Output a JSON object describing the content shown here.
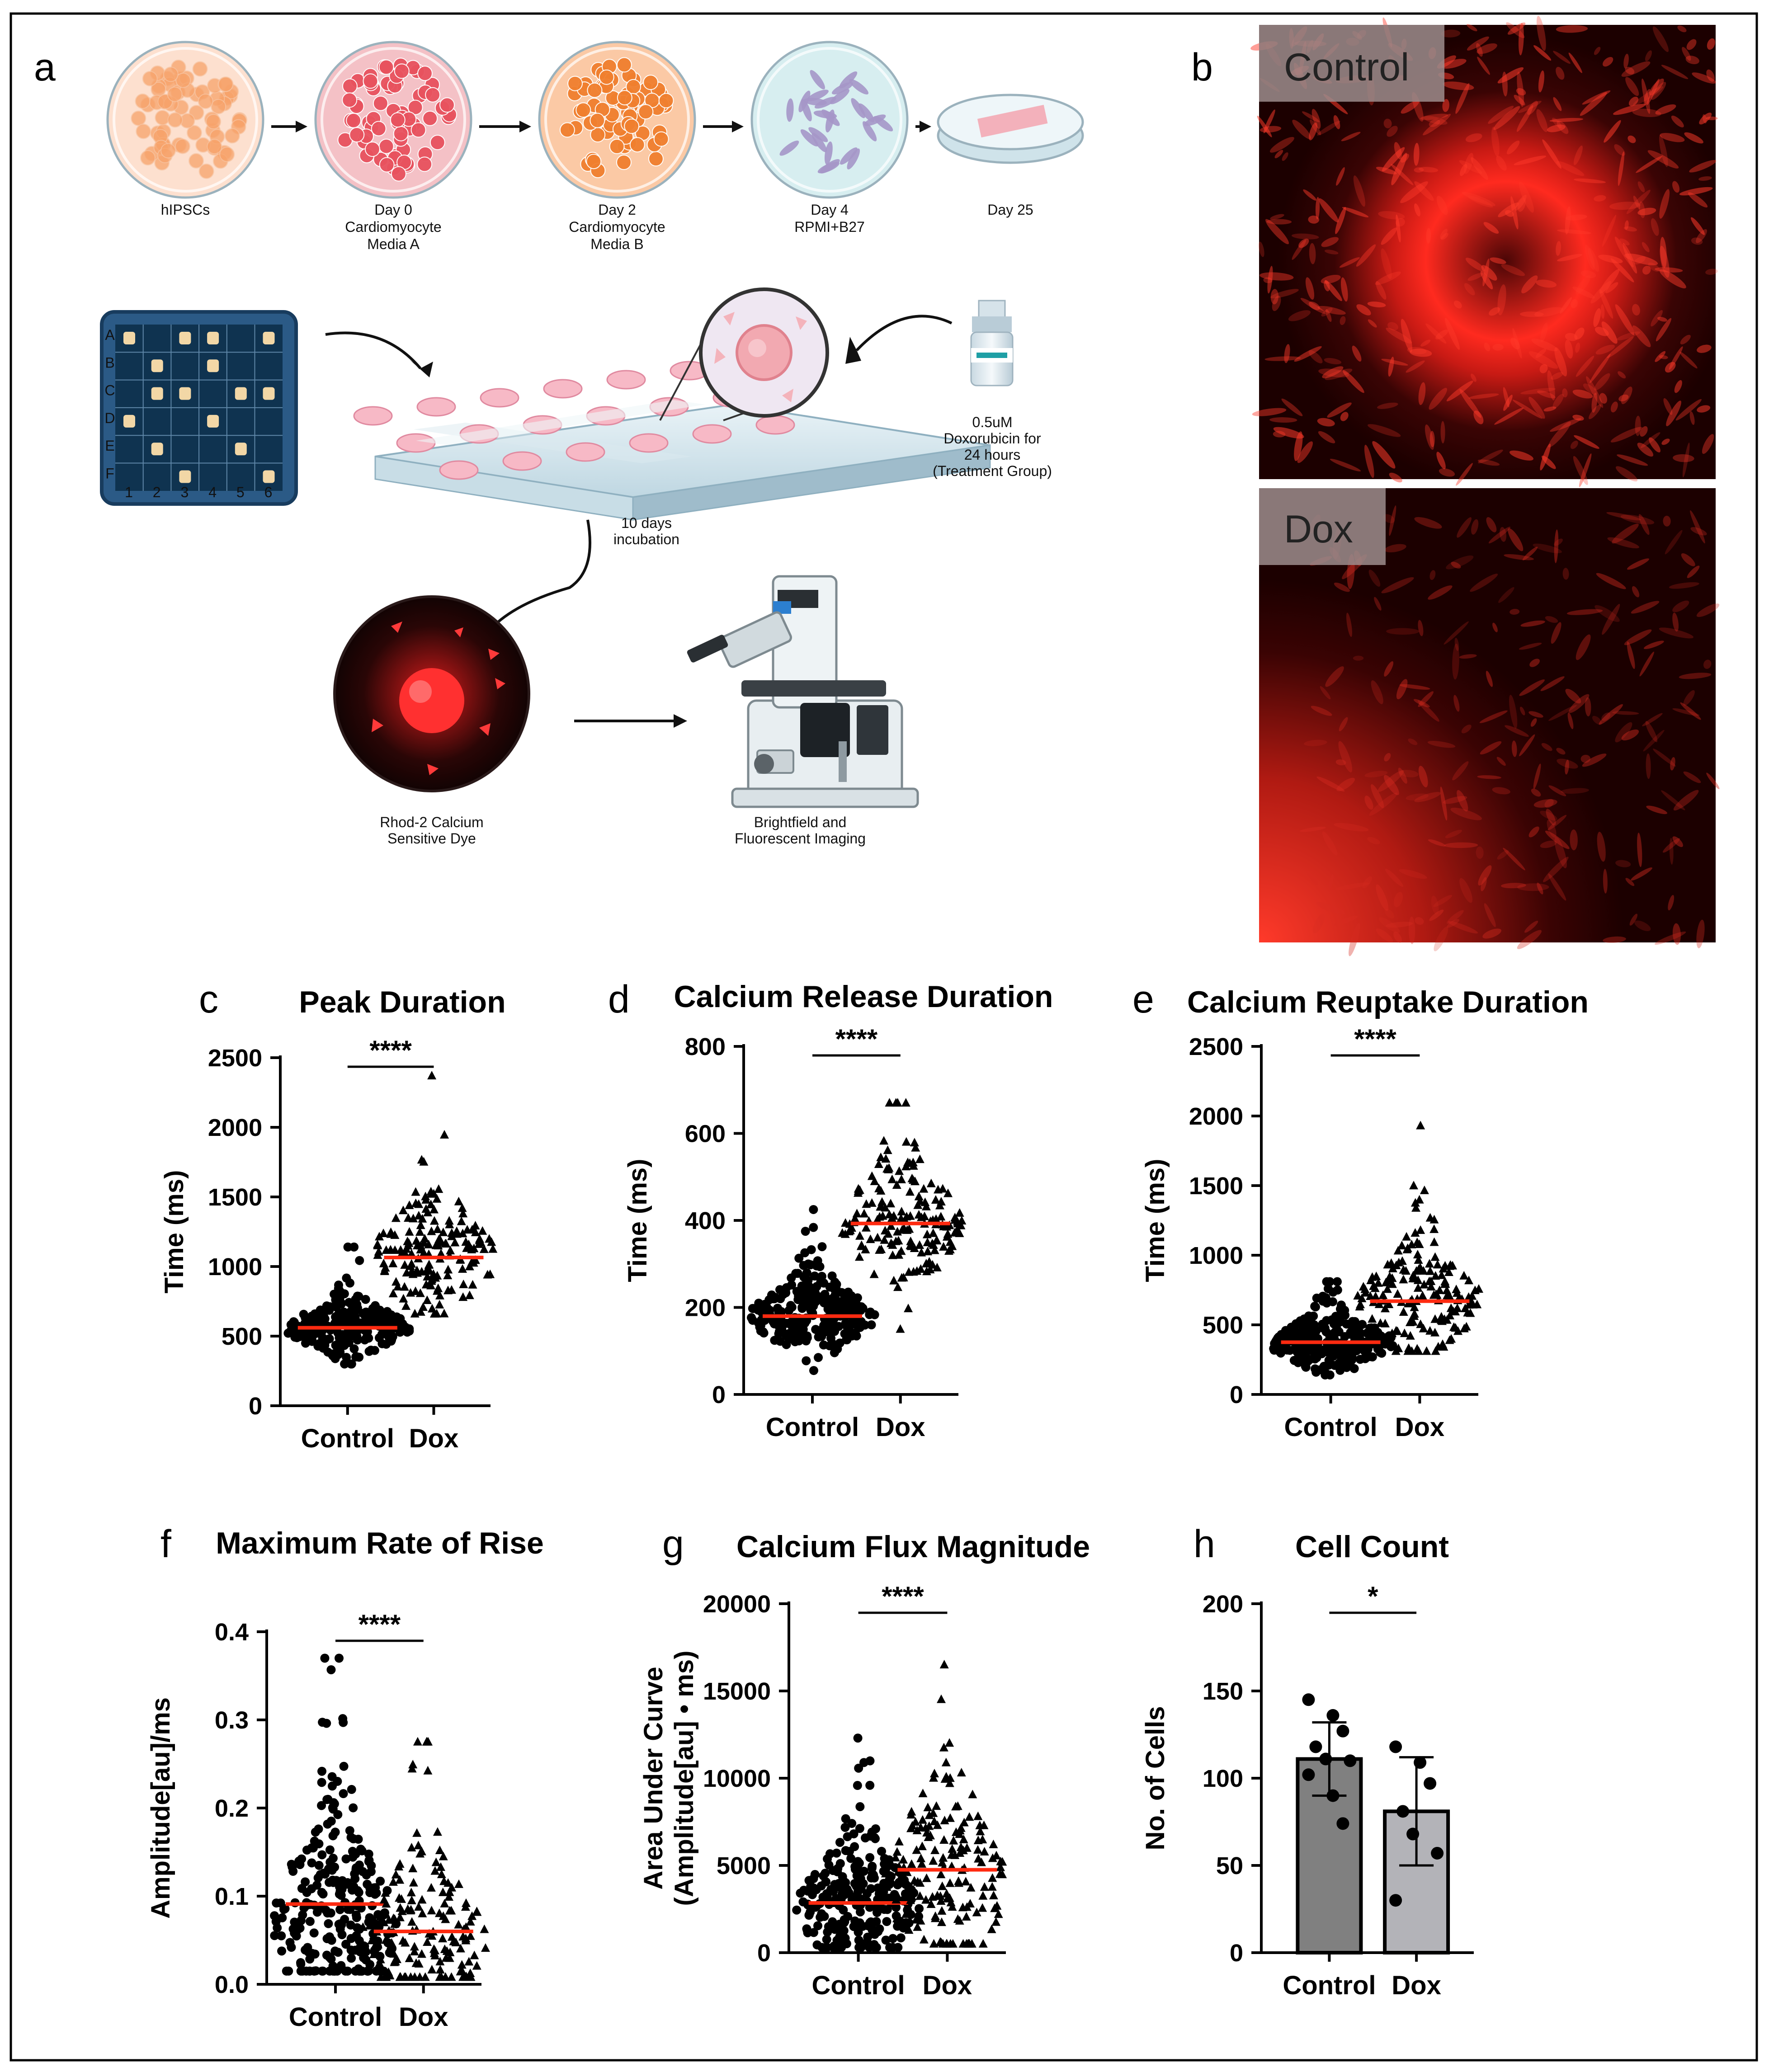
{
  "figure": {
    "panel_labels": [
      "a",
      "b",
      "c",
      "d",
      "e",
      "f",
      "g",
      "h"
    ],
    "protocol": {
      "stage_labels": [
        [
          "hIPSCs"
        ],
        [
          "Day 0",
          "Cardiomyocyte",
          "Media A"
        ],
        [
          "Day 2",
          "Cardiomyocyte",
          "Media B"
        ],
        [
          "Day 4",
          "RPMI+B27"
        ],
        [
          "Day 25"
        ]
      ],
      "treatment_lines": [
        "0.5uM",
        "Doxorubicin for",
        "24 hours",
        "(Treatment Group)"
      ],
      "incubation_lines": [
        "10 days",
        "incubation"
      ],
      "dye_lines": [
        "Rhod-2 Calcium",
        "Sensitive Dye"
      ],
      "imaging_lines": [
        "Brightfield and",
        "Fluorescent Imaging"
      ],
      "plate_rows": [
        "A",
        "B",
        "C",
        "D",
        "E",
        "F"
      ],
      "plate_cols": [
        "1",
        "2",
        "3",
        "4",
        "5",
        "6"
      ]
    },
    "micrographs": {
      "control_label": "Control",
      "dox_label": "Dox"
    }
  },
  "chart_data": [
    {
      "panel": "c",
      "type": "scatter",
      "title": "Peak Duration",
      "xlabel": "",
      "ylabel": "Time (ms)",
      "categories": [
        "Control",
        "Dox"
      ],
      "ylim": [
        0,
        2500
      ],
      "yticks": [
        0,
        500,
        1000,
        1500,
        2000,
        2500
      ],
      "medians": [
        560,
        1065
      ],
      "significance": "****",
      "series": [
        {
          "name": "Control",
          "marker": "circle",
          "center": 560,
          "min": 300,
          "max": 1140,
          "spread": 95
        },
        {
          "name": "Dox",
          "marker": "triangle",
          "center": 1065,
          "min": 660,
          "max": 2370,
          "spread": 210
        }
      ]
    },
    {
      "panel": "d",
      "type": "scatter",
      "title": "Calcium Release Duration",
      "xlabel": "",
      "ylabel": "Time (ms)",
      "categories": [
        "Control",
        "Dox"
      ],
      "ylim": [
        0,
        800
      ],
      "yticks": [
        0,
        200,
        400,
        600,
        800
      ],
      "medians": [
        180,
        393
      ],
      "significance": "****",
      "series": [
        {
          "name": "Control",
          "marker": "circle",
          "center": 180,
          "min": 55,
          "max": 425,
          "spread": 42
        },
        {
          "name": "Dox",
          "marker": "triangle",
          "center": 393,
          "min": 150,
          "max": 670,
          "spread": 75
        }
      ]
    },
    {
      "panel": "e",
      "type": "scatter",
      "title": "Calcium Reuptake Duration",
      "xlabel": "",
      "ylabel": "Time (ms)",
      "categories": [
        "Control",
        "Dox"
      ],
      "ylim": [
        0,
        2500
      ],
      "yticks": [
        0,
        500,
        1000,
        1500,
        2000,
        2500
      ],
      "medians": [
        375,
        670
      ],
      "significance": "****",
      "series": [
        {
          "name": "Control",
          "marker": "circle",
          "center": 375,
          "min": 140,
          "max": 810,
          "spread": 95
        },
        {
          "name": "Dox",
          "marker": "triangle",
          "center": 670,
          "min": 310,
          "max": 1930,
          "spread": 200
        }
      ]
    },
    {
      "panel": "f",
      "type": "scatter",
      "title": "Maximum Rate of Rise",
      "xlabel": "",
      "ylabel": "Amplitude[au]/ms",
      "categories": [
        "Control",
        "Dox"
      ],
      "ylim": [
        0,
        0.4
      ],
      "yticks": [
        0.0,
        0.1,
        0.2,
        0.3,
        0.4
      ],
      "tick_decimals": 1,
      "medians": [
        0.091,
        0.06
      ],
      "significance": "****",
      "series": [
        {
          "name": "Control",
          "marker": "circle",
          "center": 0.07,
          "min": 0.015,
          "max": 0.37,
          "spread": 0.06
        },
        {
          "name": "Dox",
          "marker": "triangle",
          "center": 0.05,
          "min": 0.008,
          "max": 0.275,
          "spread": 0.045
        }
      ]
    },
    {
      "panel": "g",
      "type": "scatter",
      "title": "Calcium Flux Magnitude",
      "xlabel": "",
      "ylabel": "Area Under Curve",
      "ylabel2": "(Amplitude[au] • ms)",
      "categories": [
        "Control",
        "Dox"
      ],
      "ylim": [
        0,
        20000
      ],
      "yticks": [
        0,
        5000,
        10000,
        15000,
        20000
      ],
      "medians": [
        2850,
        4750
      ],
      "significance": "****",
      "series": [
        {
          "name": "Control",
          "marker": "circle",
          "center": 2600,
          "min": 300,
          "max": 12300,
          "spread": 1800
        },
        {
          "name": "Dox",
          "marker": "triangle",
          "center": 4200,
          "min": 500,
          "max": 16500,
          "spread": 2700
        }
      ]
    },
    {
      "panel": "h",
      "type": "bar",
      "title": "Cell Count",
      "xlabel": "",
      "ylabel": "No. of Cells",
      "categories": [
        "Control",
        "Dox"
      ],
      "ylim": [
        0,
        200
      ],
      "yticks": [
        0,
        50,
        100,
        150,
        200
      ],
      "values": [
        111,
        81
      ],
      "sd": [
        21,
        31
      ],
      "significance": "*",
      "bar_colors": [
        "#808080",
        "#b3b3b8"
      ],
      "points": [
        [
          145,
          136,
          127,
          118,
          111,
          110,
          102,
          90,
          74
        ],
        [
          118,
          109,
          97,
          81,
          68,
          57,
          30
        ]
      ]
    }
  ]
}
